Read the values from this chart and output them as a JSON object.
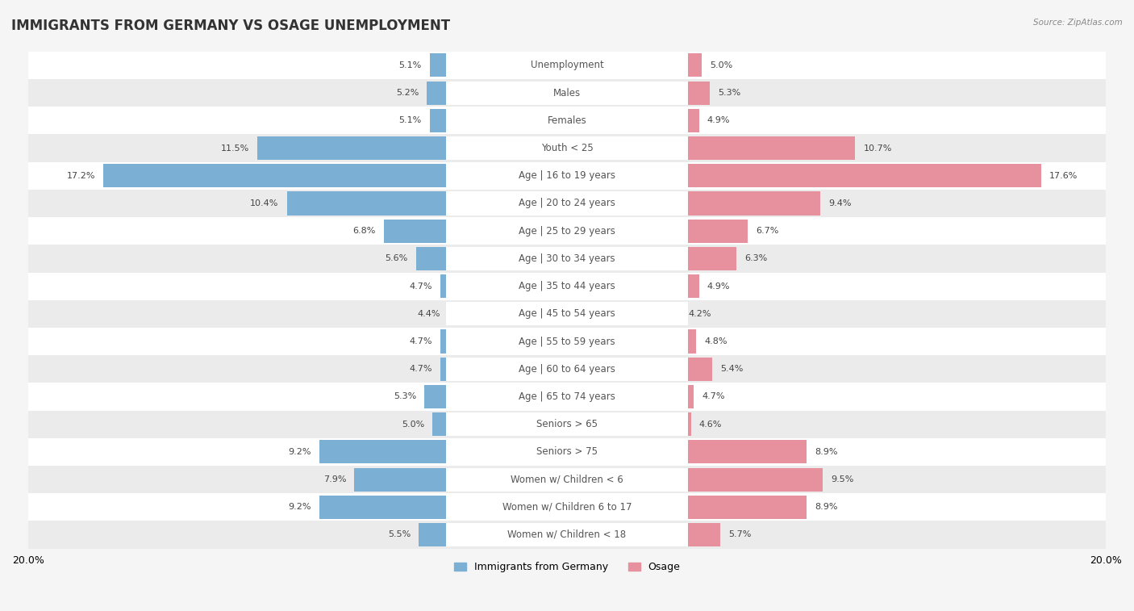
{
  "title": "IMMIGRANTS FROM GERMANY VS OSAGE UNEMPLOYMENT",
  "source": "Source: ZipAtlas.com",
  "categories": [
    "Unemployment",
    "Males",
    "Females",
    "Youth < 25",
    "Age | 16 to 19 years",
    "Age | 20 to 24 years",
    "Age | 25 to 29 years",
    "Age | 30 to 34 years",
    "Age | 35 to 44 years",
    "Age | 45 to 54 years",
    "Age | 55 to 59 years",
    "Age | 60 to 64 years",
    "Age | 65 to 74 years",
    "Seniors > 65",
    "Seniors > 75",
    "Women w/ Children < 6",
    "Women w/ Children 6 to 17",
    "Women w/ Children < 18"
  ],
  "left_values": [
    5.1,
    5.2,
    5.1,
    11.5,
    17.2,
    10.4,
    6.8,
    5.6,
    4.7,
    4.4,
    4.7,
    4.7,
    5.3,
    5.0,
    9.2,
    7.9,
    9.2,
    5.5
  ],
  "right_values": [
    5.0,
    5.3,
    4.9,
    10.7,
    17.6,
    9.4,
    6.7,
    6.3,
    4.9,
    4.2,
    4.8,
    5.4,
    4.7,
    4.6,
    8.9,
    9.5,
    8.9,
    5.7
  ],
  "left_color": "#7bafd4",
  "right_color": "#e8919e",
  "left_label": "Immigrants from Germany",
  "right_label": "Osage",
  "xlim": 20.0,
  "row_color_even": "#f5f5f5",
  "row_color_odd": "#e8e8e8",
  "title_fontsize": 12,
  "label_fontsize": 8.5,
  "value_fontsize": 8,
  "tick_fontsize": 9
}
